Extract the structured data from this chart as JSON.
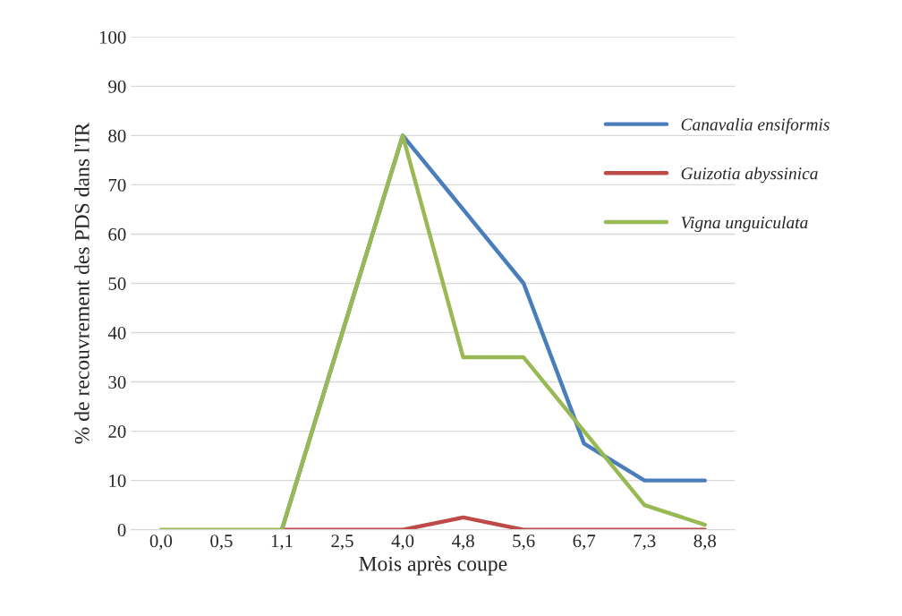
{
  "chart_data": {
    "type": "line",
    "xlabel": "Mois après coupe",
    "ylabel": "% de recouvrement des PDS dans l'IR",
    "categories": [
      "0,0",
      "0,5",
      "1,1",
      "2,5",
      "4,0",
      "4,8",
      "5,6",
      "6,7",
      "7,3",
      "8,8"
    ],
    "series": [
      {
        "name": "Canavalia ensiformis",
        "color": "#4a7ebb",
        "values": [
          null,
          null,
          0,
          40,
          80,
          65,
          50,
          17.5,
          10,
          10
        ]
      },
      {
        "name": "Guizotia abyssinica",
        "color": "#be4b48",
        "values": [
          null,
          null,
          0,
          0,
          0,
          2.5,
          0,
          0,
          0,
          0
        ]
      },
      {
        "name": "Vigna unguiculata",
        "color": "#98b954",
        "values": [
          0,
          0,
          0,
          40,
          80,
          35,
          35,
          20,
          5,
          1
        ]
      }
    ],
    "ylim": [
      0,
      100
    ],
    "yticks": [
      0,
      10,
      20,
      30,
      40,
      50,
      60,
      70,
      80,
      90,
      100
    ],
    "grid": "y",
    "legend": "right",
    "marker": "none",
    "line_style": "solid"
  }
}
